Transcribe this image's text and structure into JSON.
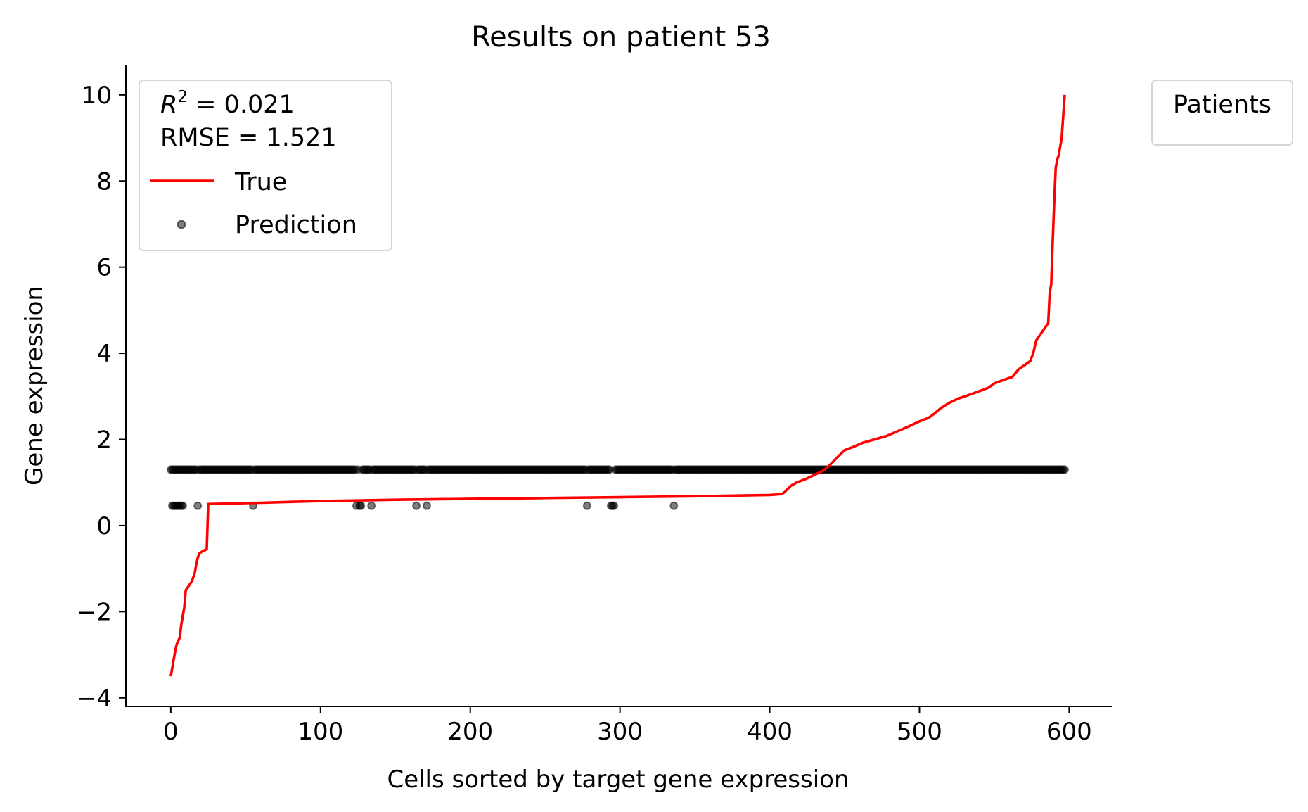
{
  "chart_data": {
    "type": "line",
    "title": "Results on patient 53",
    "xlabel": "Cells sorted by target gene expression",
    "ylabel": "Gene expression",
    "xlim": [
      -30,
      628
    ],
    "ylim": [
      -4.2,
      10.7
    ],
    "x_ticks": [
      0,
      100,
      200,
      300,
      400,
      500,
      600
    ],
    "y_ticks": [
      -4,
      -2,
      0,
      2,
      4,
      6,
      8,
      10
    ],
    "x_tick_labels": [
      "0",
      "100",
      "200",
      "300",
      "400",
      "500",
      "600"
    ],
    "y_tick_labels": [
      "−4",
      "−2",
      "0",
      "2",
      "4",
      "6",
      "8",
      "10"
    ],
    "grid": false,
    "legend": {
      "placement": "upper-left",
      "stats": {
        "r2_label": "R",
        "r2_sup": "2",
        "r2_value": " = 0.021",
        "rmse_text": "RMSE = 1.521"
      },
      "entries": [
        "True",
        "Prediction"
      ]
    },
    "side_legend": {
      "title": "Patients",
      "placement": "outside upper-right"
    },
    "series": [
      {
        "name": "True",
        "kind": "line",
        "color": "#ff0000",
        "points": [
          [
            0,
            -3.5
          ],
          [
            2,
            -3.1
          ],
          [
            3,
            -2.9
          ],
          [
            4,
            -2.75
          ],
          [
            6,
            -2.6
          ],
          [
            7,
            -2.3
          ],
          [
            8,
            -2.1
          ],
          [
            9,
            -1.9
          ],
          [
            10,
            -1.5
          ],
          [
            12,
            -1.4
          ],
          [
            14,
            -1.3
          ],
          [
            15,
            -1.2
          ],
          [
            16,
            -1.1
          ],
          [
            17,
            -0.9
          ],
          [
            18,
            -0.75
          ],
          [
            19,
            -0.65
          ],
          [
            21,
            -0.6
          ],
          [
            24,
            -0.55
          ],
          [
            25,
            0.5
          ],
          [
            60,
            0.53
          ],
          [
            100,
            0.57
          ],
          [
            150,
            0.6
          ],
          [
            200,
            0.62
          ],
          [
            250,
            0.64
          ],
          [
            300,
            0.66
          ],
          [
            350,
            0.68
          ],
          [
            400,
            0.71
          ],
          [
            408,
            0.73
          ],
          [
            410,
            0.78
          ],
          [
            414,
            0.92
          ],
          [
            418,
            1.0
          ],
          [
            424,
            1.08
          ],
          [
            430,
            1.18
          ],
          [
            436,
            1.28
          ],
          [
            440,
            1.4
          ],
          [
            445,
            1.58
          ],
          [
            450,
            1.75
          ],
          [
            456,
            1.83
          ],
          [
            462,
            1.92
          ],
          [
            470,
            2.0
          ],
          [
            478,
            2.08
          ],
          [
            486,
            2.2
          ],
          [
            494,
            2.32
          ],
          [
            500,
            2.42
          ],
          [
            506,
            2.5
          ],
          [
            510,
            2.6
          ],
          [
            514,
            2.72
          ],
          [
            520,
            2.85
          ],
          [
            526,
            2.95
          ],
          [
            532,
            3.02
          ],
          [
            540,
            3.12
          ],
          [
            546,
            3.2
          ],
          [
            550,
            3.3
          ],
          [
            556,
            3.38
          ],
          [
            562,
            3.45
          ],
          [
            566,
            3.62
          ],
          [
            570,
            3.72
          ],
          [
            574,
            3.82
          ],
          [
            576,
            4.0
          ],
          [
            578,
            4.3
          ],
          [
            580,
            4.4
          ],
          [
            582,
            4.5
          ],
          [
            584,
            4.6
          ],
          [
            586,
            4.7
          ],
          [
            587,
            5.4
          ],
          [
            588,
            5.6
          ],
          [
            589,
            6.6
          ],
          [
            590,
            7.5
          ],
          [
            591,
            8.3
          ],
          [
            592,
            8.5
          ],
          [
            593,
            8.6
          ],
          [
            594,
            8.8
          ],
          [
            595,
            9.0
          ],
          [
            596,
            9.5
          ],
          [
            597,
            10.0
          ]
        ]
      },
      {
        "name": "Prediction",
        "kind": "scatter",
        "color": "#000000",
        "high_value": 1.3,
        "high_x_range": [
          0,
          597
        ],
        "low_value": 0.46,
        "low_x": [
          1,
          2,
          3,
          4,
          5,
          6,
          7,
          8,
          18,
          55,
          124,
          126,
          127,
          134,
          164,
          171,
          278,
          294,
          295,
          296,
          336
        ]
      }
    ]
  }
}
